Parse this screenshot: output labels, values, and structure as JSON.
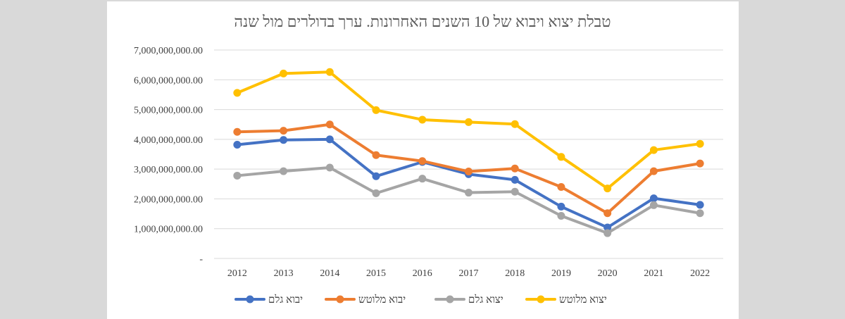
{
  "chart_data": {
    "type": "line",
    "title": "טבלת יצוא ויבוא של 10 השנים האחרונות. ערך בדולרים מול שנה",
    "xlabel": "",
    "ylabel": "",
    "categories": [
      "2012",
      "2013",
      "2014",
      "2015",
      "2016",
      "2017",
      "2018",
      "2019",
      "2020",
      "2021",
      "2022"
    ],
    "ylim": [
      0,
      7000000000
    ],
    "yticks": [
      0,
      1000000000,
      2000000000,
      3000000000,
      4000000000,
      5000000000,
      6000000000,
      7000000000
    ],
    "ytick_labels": [
      "-",
      "1,000,000,000.00",
      "2,000,000,000.00",
      "3,000,000,000.00",
      "4,000,000,000.00",
      "5,000,000,000.00",
      "6,000,000,000.00",
      "7,000,000,000.00"
    ],
    "grid": true,
    "legend_position": "bottom",
    "series": [
      {
        "name": "יבוא גלם",
        "color": "#4472c4",
        "values": [
          3820000000,
          3980000000,
          4000000000,
          2760000000,
          3240000000,
          2830000000,
          2640000000,
          1740000000,
          1040000000,
          2020000000,
          1800000000
        ]
      },
      {
        "name": "יבוא מלוטש",
        "color": "#ed7d31",
        "values": [
          4250000000,
          4290000000,
          4500000000,
          3470000000,
          3270000000,
          2920000000,
          3020000000,
          2400000000,
          1520000000,
          2930000000,
          3190000000
        ]
      },
      {
        "name": "יצוא גלם",
        "color": "#a5a5a5",
        "values": [
          2780000000,
          2930000000,
          3050000000,
          2190000000,
          2680000000,
          2210000000,
          2240000000,
          1430000000,
          850000000,
          1790000000,
          1520000000
        ]
      },
      {
        "name": "יצוא מלוטש",
        "color": "#ffc000",
        "values": [
          5560000000,
          6210000000,
          6260000000,
          4980000000,
          4660000000,
          4580000000,
          4510000000,
          3410000000,
          2350000000,
          3640000000,
          3850000000
        ]
      }
    ]
  }
}
